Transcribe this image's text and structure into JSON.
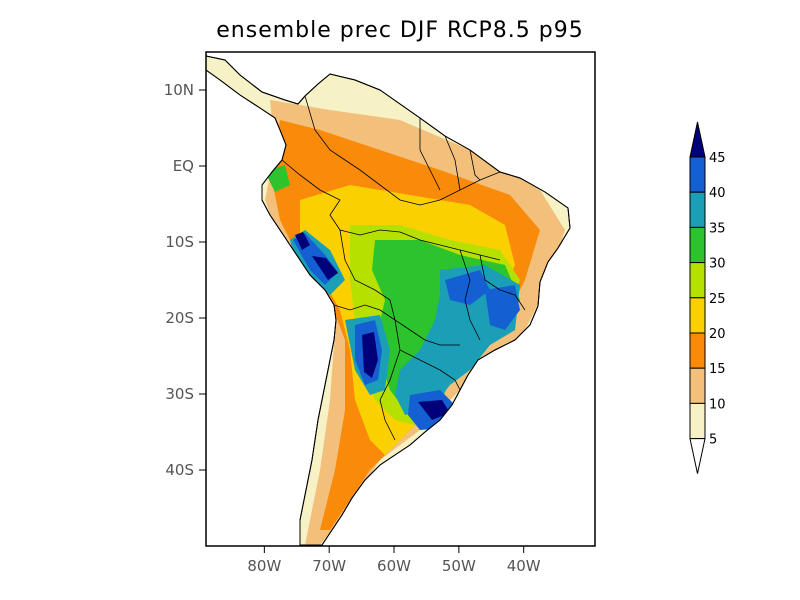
{
  "title": "ensemble prec DJF RCP8.5 p95",
  "map": {
    "lat_ticks": [
      "10N",
      "EQ",
      "10S",
      "20S",
      "30S",
      "40S"
    ],
    "lon_ticks": [
      "80W",
      "70W",
      "60W",
      "50W",
      "40W"
    ],
    "extent": {
      "lon_min": -89,
      "lon_max": -29,
      "lat_min": -50,
      "lat_max": 15
    }
  },
  "colorbar": {
    "labels": [
      "5",
      "10",
      "15",
      "20",
      "25",
      "30",
      "35",
      "40",
      "45"
    ],
    "colors": [
      "#ffffff",
      "#f7f1c6",
      "#f2c07a",
      "#f98a0a",
      "#fbd000",
      "#b6e000",
      "#2dc32d",
      "#1a9fb6",
      "#1460d3",
      "#00007a"
    ]
  }
}
